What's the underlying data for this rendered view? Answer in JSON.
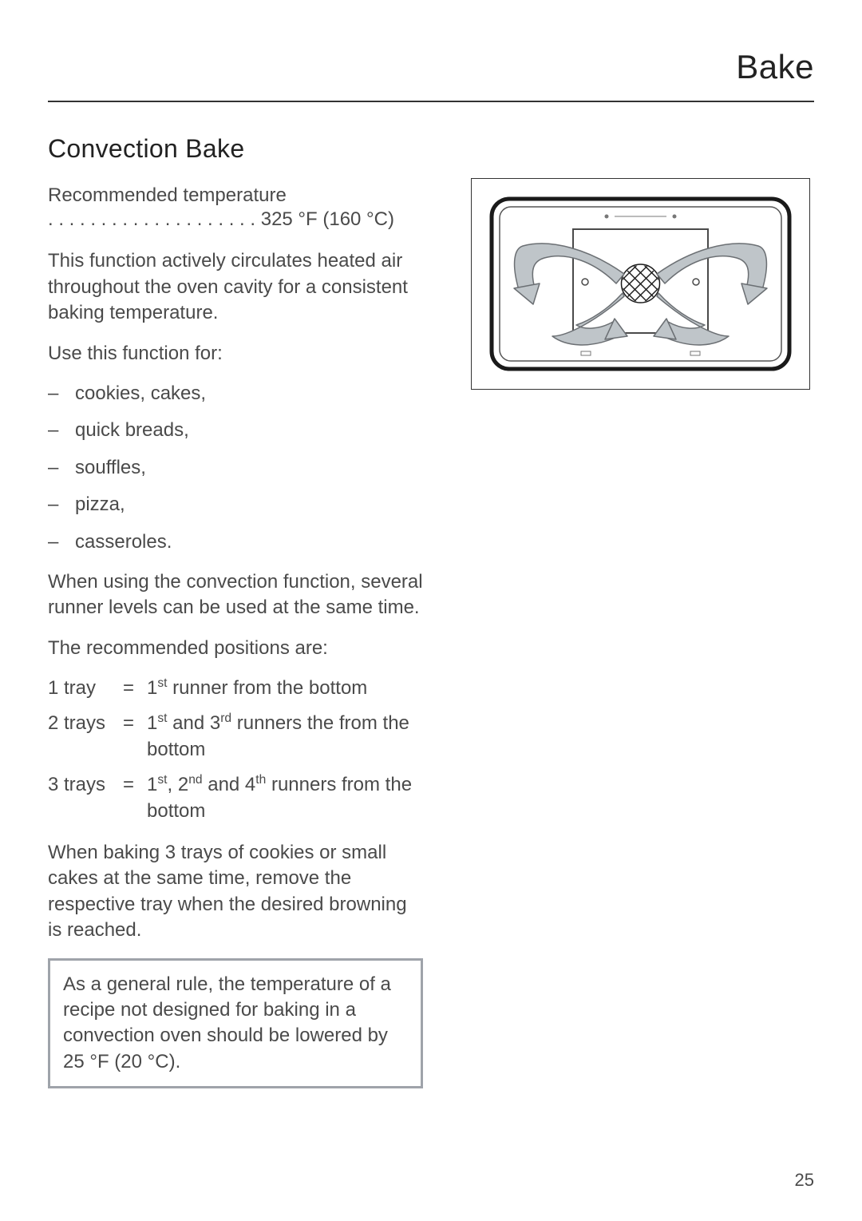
{
  "header": {
    "title": "Bake"
  },
  "section": {
    "heading": "Convection Bake",
    "rec_temp_label": "Recommended temperature",
    "rec_temp_dots": " . . . . . . . . . . . . . . . . . . . . ",
    "rec_temp_value": "325 °F (160 °C)",
    "description": "This function actively circulates heated air throughout the oven cavity for a consistent baking temperature.",
    "use_intro": "Use this function for:",
    "uses": [
      "cookies, cakes,",
      "quick breads,",
      "souffles,",
      "pizza,",
      "casseroles."
    ],
    "multi_level_note": "When using the convection function, several runner levels can be used at the same time.",
    "positions_intro": "The recommended positions are:",
    "positions": [
      {
        "label": "1 tray",
        "eq": "=",
        "desc_html": "1<sup>st</sup> runner from the bottom"
      },
      {
        "label": "2 trays",
        "eq": "=",
        "desc_html": "1<sup>st</sup> and 3<sup>rd</sup> runners the from the bottom"
      },
      {
        "label": "3 trays",
        "eq": "=",
        "desc_html": "1<sup>st</sup>, 2<sup>nd</sup> and 4<sup>th</sup> runners from the bottom"
      }
    ],
    "browning_note": "When baking 3 trays of cookies or small cakes at the same time, remove the respective tray when the desired browning is reached.",
    "tip": "As a general rule, the temperature of a recipe not designed for baking in a convection oven should be lowered by 25 °F (20 °C)."
  },
  "diagram": {
    "name": "convection-airflow-diagram",
    "outer_stroke": "#1a1a1a",
    "outer_stroke_width": 5,
    "corner_radius": 22,
    "inner_stroke": "#555555",
    "arrow_fill": "#bfc5c9",
    "arrow_stroke": "#6b6f73",
    "fan_fill": "#1a1a1a",
    "panel_stroke": "#4a4a4a",
    "background": "#ffffff"
  },
  "page_number": "25",
  "colors": {
    "text": "#4a4a4a",
    "heading": "#222222",
    "rule": "#333333",
    "tip_border": "#9fa3aa",
    "page_bg": "#ffffff"
  },
  "typography": {
    "title_size_pt": 32,
    "heading_size_pt": 24,
    "body_size_pt": 18,
    "font_family": "Helvetica"
  }
}
